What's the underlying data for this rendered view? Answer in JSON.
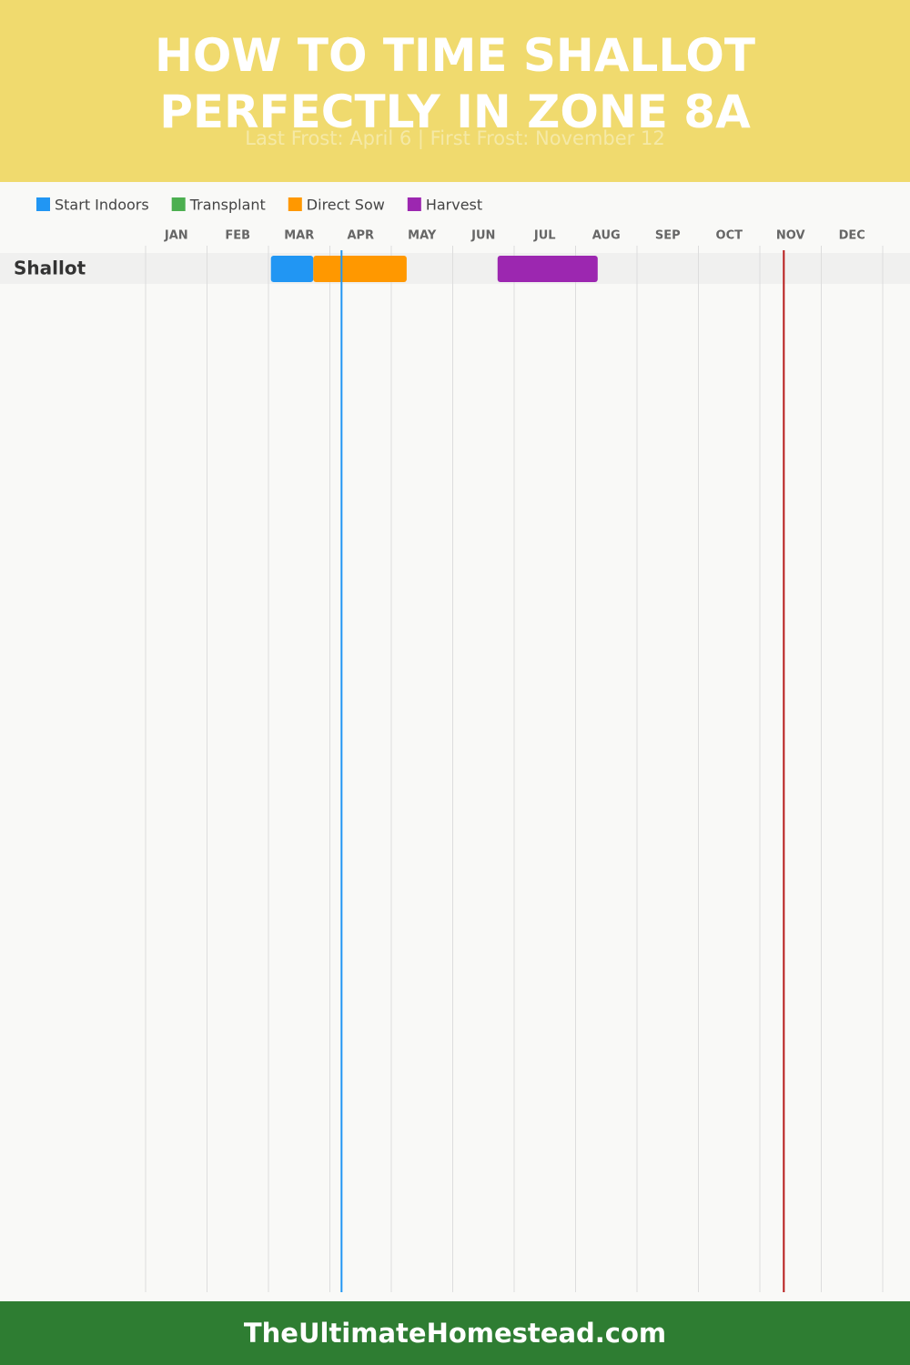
{
  "chart_data": {
    "type": "gantt",
    "title": "HOW TO TIME SHALLOT PERFECTLY IN ZONE 8A",
    "subtitle": "Last Frost: April 6 | First Frost: November 12",
    "footer": "TheUltimateHomestead.com",
    "categories": [
      "Shallot"
    ],
    "xlim": [
      0,
      12
    ],
    "xticks": [
      {
        "value": 0,
        "label": "JAN"
      },
      {
        "value": 1,
        "label": "FEB"
      },
      {
        "value": 2,
        "label": "MAR"
      },
      {
        "value": 3,
        "label": "APR"
      },
      {
        "value": 4,
        "label": "MAY"
      },
      {
        "value": 5,
        "label": "JUN"
      },
      {
        "value": 6,
        "label": "JUL"
      },
      {
        "value": 7,
        "label": "AUG"
      },
      {
        "value": 8,
        "label": "SEP"
      },
      {
        "value": 9,
        "label": "OCT"
      },
      {
        "value": 10,
        "label": "NOV"
      },
      {
        "value": 11,
        "label": "DEC"
      }
    ],
    "grid": true,
    "series": [
      {
        "name": "Start Indoors",
        "color": "#2196f3",
        "values": [
          [
            2.04,
            2.73
          ]
        ]
      },
      {
        "name": "Transplant",
        "color": "#4caf50",
        "values": [
          null
        ]
      },
      {
        "name": "Direct Sow",
        "color": "#ff9800",
        "values": [
          [
            2.73,
            4.25
          ]
        ]
      },
      {
        "name": "Harvest",
        "color": "#9c27b0",
        "values": [
          [
            5.73,
            7.36
          ]
        ]
      }
    ],
    "markers": [
      {
        "value": 3.19,
        "color": "#2196f3"
      },
      {
        "value": 10.39,
        "color": "#b71c1c"
      }
    ]
  }
}
